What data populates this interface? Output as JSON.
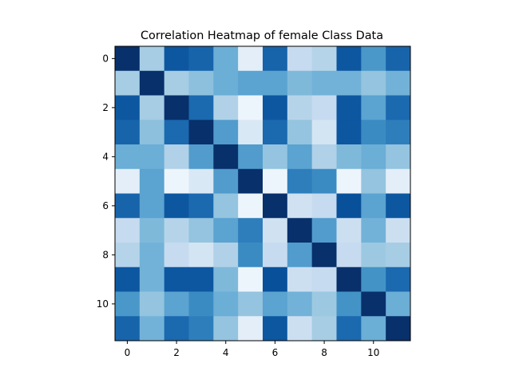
{
  "chart_data": {
    "type": "heatmap",
    "title": "Correlation Heatmap of female Class Data",
    "xlabel": "",
    "ylabel": "",
    "colormap": "Blues",
    "x_ticks": [
      0,
      2,
      4,
      6,
      8,
      10
    ],
    "y_ticks": [
      0,
      2,
      4,
      6,
      8,
      10
    ],
    "x_tick_labels": [
      "0",
      "2",
      "4",
      "6",
      "8",
      "10"
    ],
    "y_tick_labels": [
      "0",
      "2",
      "4",
      "6",
      "8",
      "10"
    ],
    "xlim": [
      -0.5,
      11.5
    ],
    "ylim": [
      11.5,
      -0.5
    ],
    "grid": false,
    "legend": "none",
    "n_rows": 12,
    "n_cols": 12,
    "matrix": [
      [
        1.0,
        0.35,
        0.85,
        0.8,
        0.5,
        0.1,
        0.8,
        0.25,
        0.3,
        0.85,
        0.6,
        0.8
      ],
      [
        0.35,
        1.0,
        0.35,
        0.42,
        0.5,
        0.55,
        0.55,
        0.45,
        0.48,
        0.48,
        0.4,
        0.48
      ],
      [
        0.85,
        0.35,
        1.0,
        0.78,
        0.32,
        0.05,
        0.85,
        0.3,
        0.25,
        0.85,
        0.55,
        0.78
      ],
      [
        0.8,
        0.42,
        0.78,
        1.0,
        0.58,
        0.15,
        0.78,
        0.4,
        0.18,
        0.85,
        0.65,
        0.7
      ],
      [
        0.5,
        0.5,
        0.32,
        0.58,
        1.0,
        0.58,
        0.4,
        0.55,
        0.32,
        0.45,
        0.5,
        0.4
      ],
      [
        0.1,
        0.55,
        0.05,
        0.15,
        0.58,
        1.0,
        0.05,
        0.7,
        0.65,
        0.05,
        0.4,
        0.1
      ],
      [
        0.8,
        0.55,
        0.85,
        0.78,
        0.4,
        0.05,
        1.0,
        0.2,
        0.25,
        0.88,
        0.55,
        0.85
      ],
      [
        0.25,
        0.45,
        0.3,
        0.4,
        0.55,
        0.7,
        0.2,
        1.0,
        0.58,
        0.22,
        0.48,
        0.22
      ],
      [
        0.3,
        0.48,
        0.25,
        0.18,
        0.32,
        0.65,
        0.25,
        0.58,
        1.0,
        0.25,
        0.38,
        0.35
      ],
      [
        0.85,
        0.48,
        0.85,
        0.85,
        0.45,
        0.05,
        0.88,
        0.22,
        0.25,
        1.0,
        0.62,
        0.78
      ],
      [
        0.6,
        0.4,
        0.55,
        0.65,
        0.5,
        0.4,
        0.55,
        0.48,
        0.38,
        0.62,
        1.0,
        0.5
      ],
      [
        0.8,
        0.48,
        0.78,
        0.7,
        0.4,
        0.1,
        0.85,
        0.22,
        0.35,
        0.78,
        0.5,
        1.0
      ]
    ]
  }
}
